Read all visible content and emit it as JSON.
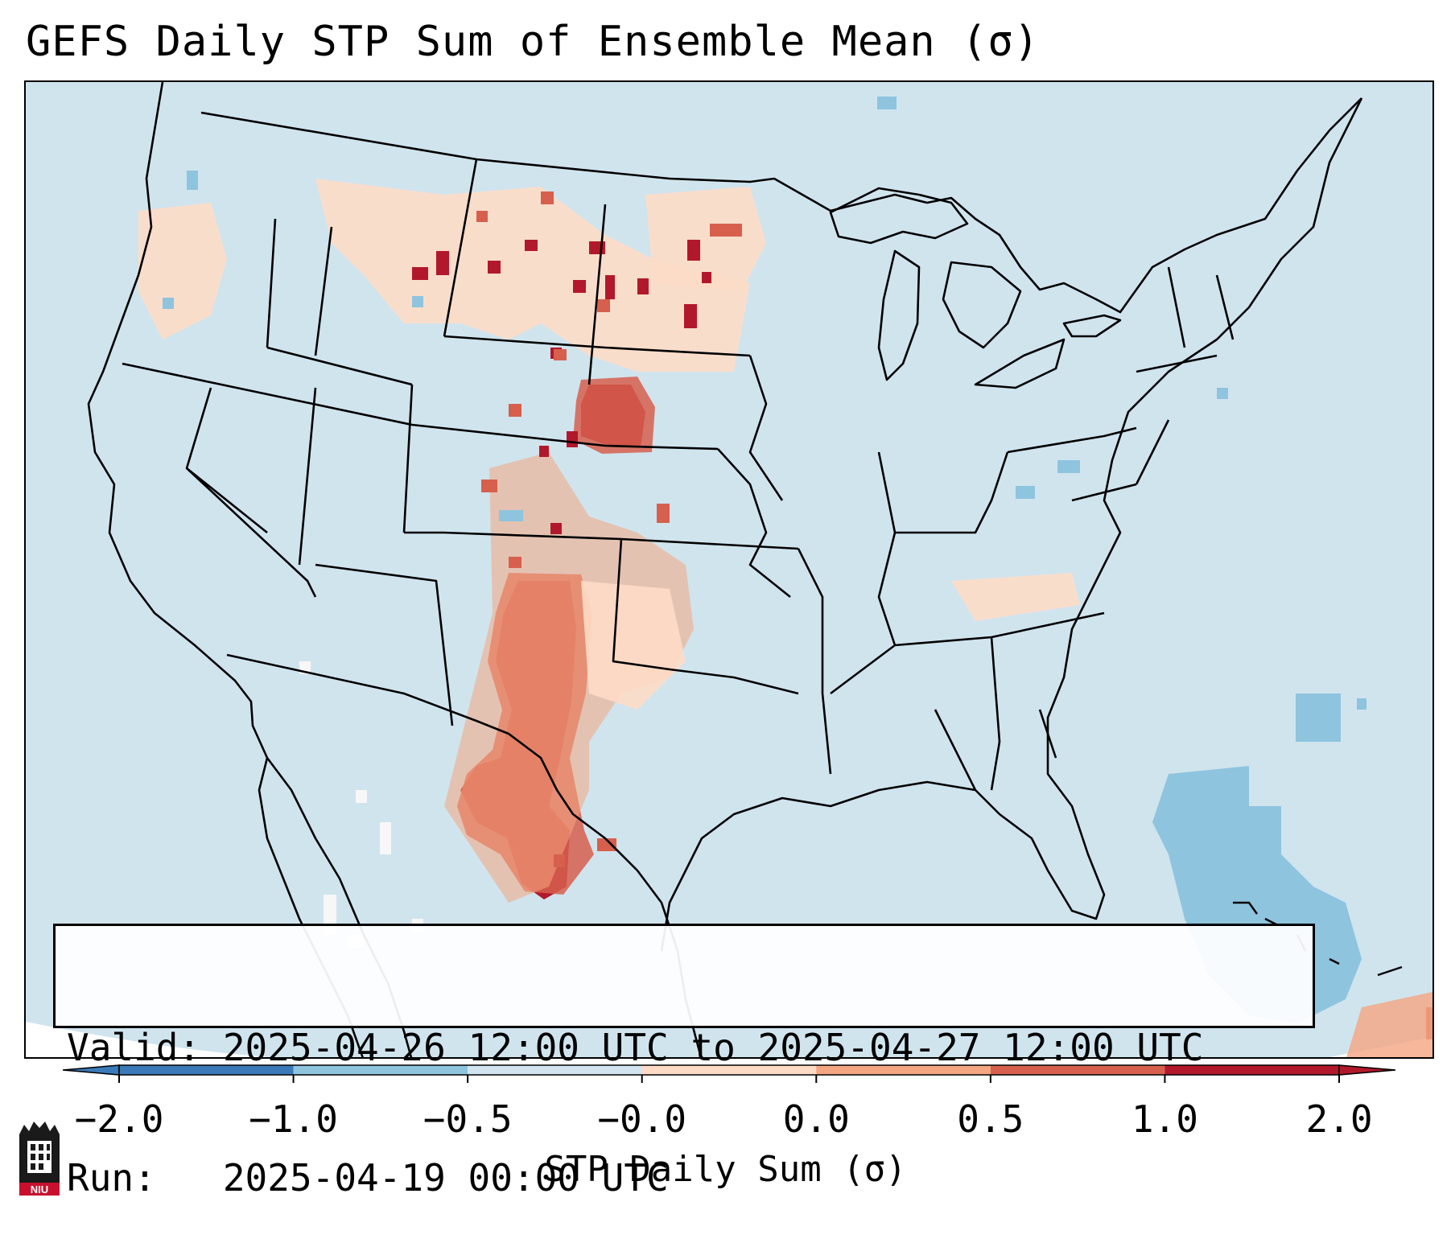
{
  "title": "GEFS Daily STP Sum of Ensemble Mean (σ)",
  "info": {
    "valid_line": "Valid: 2025-04-26 12:00 UTC to 2025-04-27 12:00 UTC",
    "run_line": "Run:   2025-04-19 00:00 UTC"
  },
  "colorbar": {
    "label": "STP Daily Sum (σ)",
    "tick_labels": [
      "−2.0",
      "−1.0",
      "−0.5",
      "−0.0",
      "0.0",
      "0.5",
      "1.0",
      "2.0"
    ],
    "colors": [
      "#3a7ab8",
      "#8ec4de",
      "#d1e5f0",
      "#f7f7f7",
      "#fddbc7",
      "#f4a582",
      "#d6604d",
      "#b2182b"
    ],
    "extend": "both"
  },
  "map": {
    "projection": "Lambert Conformal (CONUS)",
    "ocean_color": "#d0e4ee",
    "field_colors": {
      "strong_positive": "#b2182b",
      "positive": "#d6604d",
      "weak_positive": "#f4a582",
      "slight_positive": "#fddbc7",
      "negative": "#8ec4de",
      "near_zero": "#f7f7f7"
    }
  },
  "logo": {
    "text": "NIU",
    "colors": [
      "#1a1a1a",
      "#c8102e",
      "#ffffff"
    ]
  }
}
